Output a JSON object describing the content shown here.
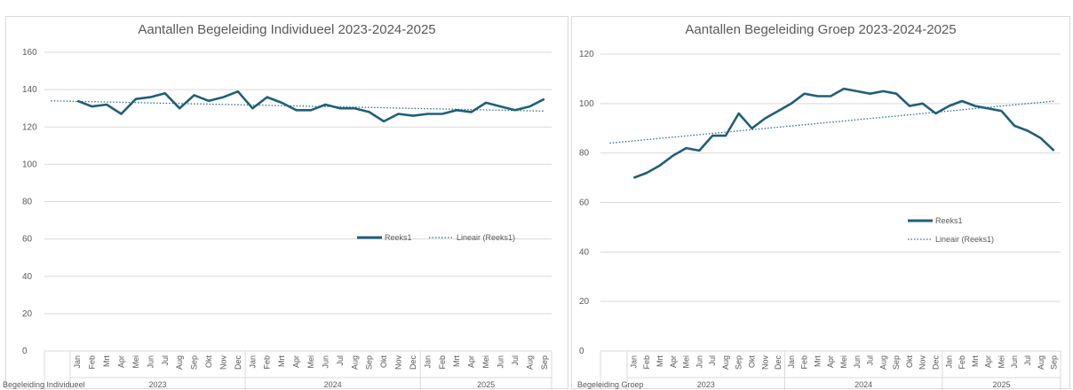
{
  "charts": [
    {
      "type": "line",
      "title": "Aantallen Begeleiding Individueel 2023-2024-2025",
      "category_label": "Begeleiding Individueel",
      "months": [
        "Jan",
        "Feb",
        "Mrt",
        "Apr",
        "Mei",
        "Jun",
        "Jul",
        "Aug",
        "Sep",
        "Okt",
        "Nov",
        "Dec",
        "Jan",
        "Feb",
        "Mrt",
        "Apr",
        "Mei",
        "Jun",
        "Jul",
        "Aug",
        "Sep",
        "Okt",
        "Nov",
        "Dec",
        "Jan",
        "Feb",
        "Mrt",
        "Apr",
        "Mei",
        "Jun",
        "Jul",
        "Aug",
        "Sep"
      ],
      "years": [
        {
          "label": "2023",
          "count": 12
        },
        {
          "label": "2024",
          "count": 12
        },
        {
          "label": "2025",
          "count": 9
        }
      ],
      "series": [
        {
          "name": "Reeks1",
          "values": [
            134,
            131,
            132,
            127,
            135,
            136,
            138,
            130,
            137,
            134,
            136,
            139,
            130,
            136,
            133,
            129,
            129,
            132,
            130,
            130,
            128,
            123,
            127,
            126,
            127,
            127,
            129,
            128,
            133,
            131,
            129,
            131,
            135
          ]
        }
      ],
      "trendline": {
        "name": "Lineair (Reeks1)",
        "start": 134,
        "end": 128.5
      },
      "y_axis": {
        "min": 0,
        "max": 160,
        "step": 20,
        "ticks": [
          "0",
          "20",
          "40",
          "60",
          "80",
          "100",
          "120",
          "140",
          "160"
        ]
      },
      "legend": {
        "position": "center-right",
        "series_label": "Reeks1",
        "trend_label": "Lineair (Reeks1)"
      },
      "grid": true
    },
    {
      "type": "line",
      "title": "Aantallen Begeleiding Groep 2023-2024-2025",
      "category_label": "Begeleiding Groep",
      "months": [
        "Jan",
        "Feb",
        "Mrt",
        "Apr",
        "Mei",
        "Jun",
        "Jul",
        "Aug",
        "Sep",
        "Okt",
        "Nov",
        "Dec",
        "Jan",
        "Feb",
        "Mrt",
        "Apr",
        "Mei",
        "Jun",
        "Jul",
        "Aug",
        "Sep",
        "Okt",
        "Nov",
        "Dec",
        "Jan",
        "Feb",
        "Mrt",
        "Apr",
        "Mei",
        "Jun",
        "Jul",
        "Aug",
        "Sep"
      ],
      "years": [
        {
          "label": "2023",
          "count": 12
        },
        {
          "label": "2024",
          "count": 12
        },
        {
          "label": "2025",
          "count": 9
        }
      ],
      "series": [
        {
          "name": "Reeks1",
          "values": [
            70,
            72,
            75,
            79,
            82,
            81,
            87,
            87,
            96,
            90,
            94,
            97,
            100,
            104,
            103,
            103,
            106,
            105,
            104,
            105,
            104,
            99,
            100,
            96,
            99,
            101,
            99,
            98,
            97,
            91,
            89,
            86,
            81
          ]
        }
      ],
      "trendline": {
        "name": "Lineair (Reeks1)",
        "start": 84,
        "end": 101
      },
      "y_axis": {
        "min": 0,
        "max": 120,
        "step": 20,
        "ticks": [
          "0",
          "20",
          "40",
          "60",
          "80",
          "100",
          "120"
        ]
      },
      "legend": {
        "position": "center-right",
        "series_label": "Reeks1",
        "trend_label": "Lineair (Reeks1)"
      },
      "grid": true
    }
  ],
  "colors": {
    "series": "#1f5f7a",
    "trend": "#2e6f8e",
    "grid": "#d9d9d9",
    "axis_text": "#595959"
  }
}
